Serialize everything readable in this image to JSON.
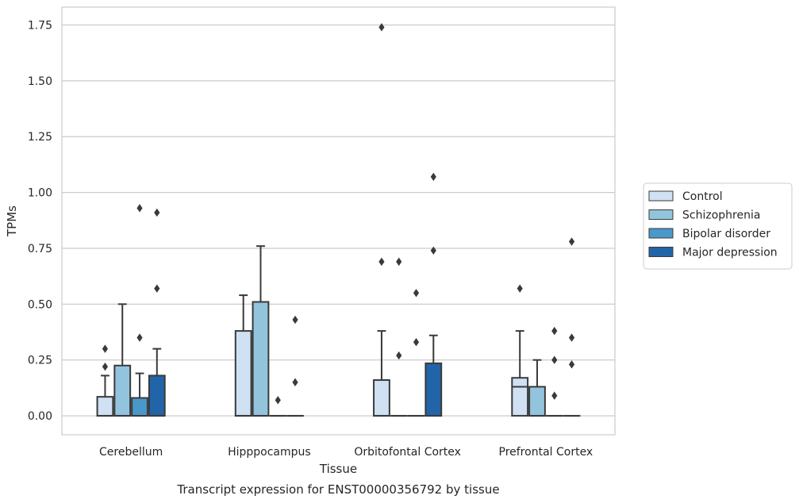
{
  "chart_data": {
    "type": "boxplot",
    "title": "",
    "caption": "Transcript expression for ENST00000356792 by tissue",
    "xlabel": "Tissue",
    "ylabel": "TPMs",
    "ylim": [
      -0.085,
      1.83
    ],
    "yticks": [
      0.0,
      0.25,
      0.5,
      0.75,
      1.0,
      1.25,
      1.5,
      1.75
    ],
    "ytick_labels": [
      "0.00",
      "0.25",
      "0.50",
      "0.75",
      "1.00",
      "1.25",
      "1.50",
      "1.75"
    ],
    "grid": true,
    "legend_position": "right",
    "categories": [
      "Cerebellum",
      "Hipppocampus",
      "Orbitofontal Cortex",
      "Prefrontal Cortex"
    ],
    "series": [
      {
        "name": "Control",
        "color": "#cfe1f2",
        "boxes": [
          {
            "q1": 0.0,
            "median": 0.0,
            "q3": 0.085,
            "whisker_low": 0.0,
            "whisker_high": 0.18,
            "outliers": [
              0.22,
              0.3
            ]
          },
          {
            "q1": 0.0,
            "median": 0.0,
            "q3": 0.38,
            "whisker_low": 0.0,
            "whisker_high": 0.54,
            "outliers": []
          },
          {
            "q1": 0.0,
            "median": 0.0,
            "q3": 0.16,
            "whisker_low": 0.0,
            "whisker_high": 0.38,
            "outliers": [
              0.69,
              1.74
            ]
          },
          {
            "q1": 0.0,
            "median": 0.13,
            "q3": 0.17,
            "whisker_low": 0.0,
            "whisker_high": 0.38,
            "outliers": [
              0.57
            ]
          }
        ]
      },
      {
        "name": "Schizophrenia",
        "color": "#93c4de",
        "boxes": [
          {
            "q1": 0.0,
            "median": 0.0,
            "q3": 0.225,
            "whisker_low": 0.0,
            "whisker_high": 0.5,
            "outliers": []
          },
          {
            "q1": 0.0,
            "median": 0.0,
            "q3": 0.51,
            "whisker_low": 0.0,
            "whisker_high": 0.76,
            "outliers": []
          },
          {
            "q1": 0.0,
            "median": 0.0,
            "q3": 0.0,
            "whisker_low": 0.0,
            "whisker_high": 0.0,
            "outliers": [
              0.27,
              0.69
            ]
          },
          {
            "q1": 0.0,
            "median": 0.0,
            "q3": 0.13,
            "whisker_low": 0.0,
            "whisker_high": 0.25,
            "outliers": []
          }
        ]
      },
      {
        "name": "Bipolar disorder",
        "color": "#4a98c9",
        "boxes": [
          {
            "q1": 0.0,
            "median": 0.0,
            "q3": 0.08,
            "whisker_low": 0.0,
            "whisker_high": 0.19,
            "outliers": [
              0.35,
              0.93
            ]
          },
          {
            "q1": 0.0,
            "median": 0.0,
            "q3": 0.0,
            "whisker_low": 0.0,
            "whisker_high": 0.0,
            "outliers": [
              0.07
            ]
          },
          {
            "q1": 0.0,
            "median": 0.0,
            "q3": 0.0,
            "whisker_low": 0.0,
            "whisker_high": 0.0,
            "outliers": [
              0.33,
              0.55
            ]
          },
          {
            "q1": 0.0,
            "median": 0.0,
            "q3": 0.0,
            "whisker_low": 0.0,
            "whisker_high": 0.0,
            "outliers": [
              0.09,
              0.25,
              0.38
            ]
          }
        ]
      },
      {
        "name": "Major depression",
        "color": "#2264a8",
        "boxes": [
          {
            "q1": 0.0,
            "median": 0.0,
            "q3": 0.18,
            "whisker_low": 0.0,
            "whisker_high": 0.3,
            "outliers": [
              0.57,
              0.91
            ]
          },
          {
            "q1": 0.0,
            "median": 0.0,
            "q3": 0.0,
            "whisker_low": 0.0,
            "whisker_high": 0.0,
            "outliers": [
              0.15,
              0.43
            ]
          },
          {
            "q1": 0.0,
            "median": 0.0,
            "q3": 0.235,
            "whisker_low": 0.0,
            "whisker_high": 0.36,
            "outliers": [
              0.74,
              1.07
            ]
          },
          {
            "q1": 0.0,
            "median": 0.0,
            "q3": 0.0,
            "whisker_low": 0.0,
            "whisker_high": 0.0,
            "outliers": [
              0.23,
              0.35,
              0.78
            ]
          }
        ]
      }
    ]
  }
}
